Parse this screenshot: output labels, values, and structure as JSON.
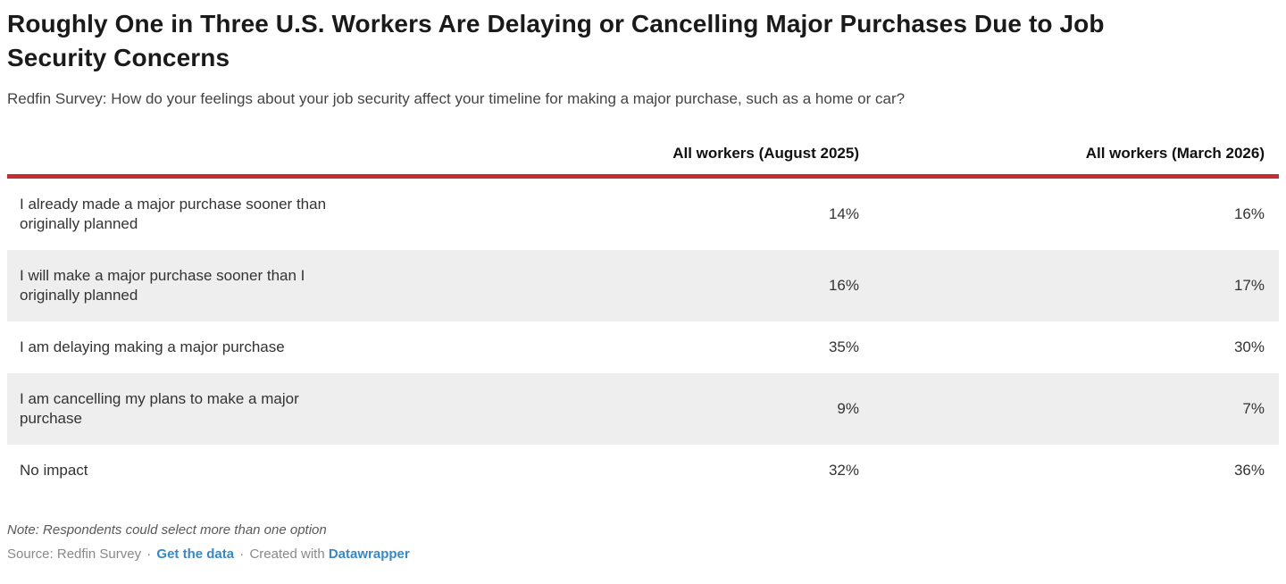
{
  "header": {
    "title": "Roughly One in Three U.S. Workers Are Delaying or Cancelling Major Purchases Due to Job\nSecurity Concerns",
    "subtitle": "Redfin Survey: How do your feelings about your job security affect your timeline for making a major purchase, such as a home or car?"
  },
  "table": {
    "columns": [
      "",
      "All workers (August 2025)",
      "All workers (March 2026)"
    ],
    "rows": [
      {
        "label": "I already made a major purchase sooner than\noriginally planned",
        "aug2025": "14%",
        "mar2026": "16%"
      },
      {
        "label": "I will make a major purchase sooner than I\noriginally planned",
        "aug2025": "16%",
        "mar2026": "17%"
      },
      {
        "label": "I am delaying making a major purchase",
        "aug2025": "35%",
        "mar2026": "30%"
      },
      {
        "label": "I am cancelling my plans to make a major\npurchase",
        "aug2025": "9%",
        "mar2026": "7%"
      },
      {
        "label": "No impact",
        "aug2025": "32%",
        "mar2026": "36%"
      }
    ]
  },
  "footer": {
    "note": "Note: Respondents could select more than one option",
    "source_prefix": "Source: Redfin Survey",
    "separator": "·",
    "get_data_label": "Get the data",
    "created_with_label": "Created with",
    "datawrapper_label": "Datawrapper"
  },
  "colors": {
    "accent_rule": "#c32d30",
    "row_alt_bg": "#eeeeee",
    "link": "#3a87c8",
    "title_text": "#1a1a1a",
    "body_text": "#333333"
  },
  "chart_data": {
    "type": "table",
    "title": "Roughly One in Three U.S. Workers Are Delaying or Cancelling Major Purchases Due to Job Security Concerns",
    "subtitle": "Redfin Survey: How do your feelings about your job security affect your timeline for making a major purchase, such as a home or car?",
    "categories": [
      "I already made a major purchase sooner than originally planned",
      "I will make a major purchase sooner than I originally planned",
      "I am delaying making a major purchase",
      "I am cancelling my plans to make a major purchase",
      "No impact"
    ],
    "series": [
      {
        "name": "All workers (August 2025)",
        "values": [
          14,
          16,
          35,
          9,
          32
        ]
      },
      {
        "name": "All workers (March 2026)",
        "values": [
          16,
          17,
          30,
          7,
          36
        ]
      }
    ],
    "value_unit": "%",
    "note": "Note: Respondents could select more than one option",
    "source": "Source: Redfin Survey · Get the data · Created with Datawrapper",
    "layout_hints": {
      "alternating_row_shading": true,
      "header_rule_color": "#c32d30",
      "value_alignment": "right"
    }
  }
}
